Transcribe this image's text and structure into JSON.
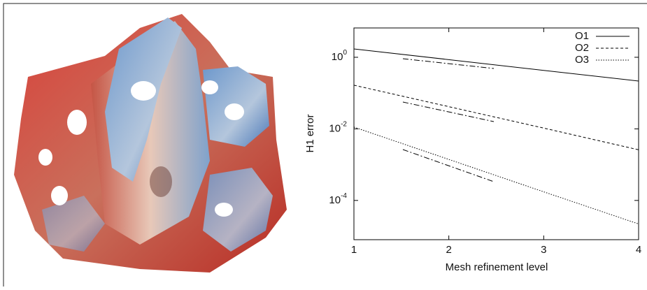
{
  "chart_data": {
    "type": "line",
    "x_label": "Mesh refinement level",
    "y_label": "H1 error",
    "x": [
      1,
      2,
      3,
      4
    ],
    "series": [
      {
        "name": "O1",
        "color": "#000000",
        "dash": "solid",
        "values": [
          1.71,
          0.86,
          0.43,
          0.217
        ]
      },
      {
        "name": "O2",
        "color": "#000000",
        "dash": "dashed",
        "values": [
          0.166,
          0.0417,
          0.0105,
          0.0026
        ]
      },
      {
        "name": "O3",
        "color": "#000000",
        "dash": "dotted",
        "values": [
          0.0112,
          0.0014,
          0.000174,
          2.2e-05
        ]
      }
    ],
    "xlim": [
      1,
      4
    ],
    "xticks": [
      1,
      2,
      3,
      4
    ],
    "ylim": [
      8e-06,
      6.6
    ],
    "log_y": true,
    "yticks": [
      {
        "value": 1,
        "label": "10^0"
      },
      {
        "value": 0.01,
        "label": "10^-2"
      },
      {
        "value": 0.0001,
        "label": "10^-4"
      }
    ],
    "grid": false,
    "legend": "top-right"
  }
}
